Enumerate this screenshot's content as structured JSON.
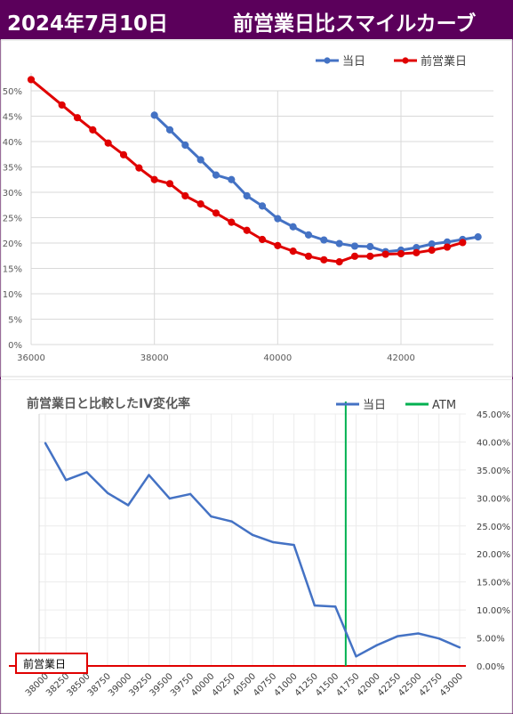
{
  "header": {
    "date": "2024年7月10日",
    "title": "前営業日比スマイルカーブ"
  },
  "colors": {
    "header_bg": "#5b005b",
    "today": "#4472c4",
    "prev": "#e00000",
    "atm": "#00b050",
    "grid": "#d9d9d9"
  },
  "chart_data": [
    {
      "type": "line",
      "title": "",
      "xlim": [
        36000,
        43500
      ],
      "ylim": [
        0,
        0.5
      ],
      "x_ticks": [
        "36000",
        "38000",
        "40000",
        "42000"
      ],
      "y_ticks": [
        "0%",
        "5%",
        "10%",
        "15%",
        "20%",
        "25%",
        "30%",
        "35%",
        "40%",
        "45%",
        "50%"
      ],
      "legend_position": "top-right",
      "series": [
        {
          "name": "当日",
          "x": [
            38000,
            38250,
            38500,
            38750,
            39000,
            39250,
            39500,
            39750,
            40000,
            40250,
            40500,
            40750,
            41000,
            41250,
            41500,
            41750,
            42000,
            42250,
            42500,
            42750,
            43000,
            43250
          ],
          "y": [
            0.452,
            0.423,
            0.393,
            0.364,
            0.334,
            0.325,
            0.293,
            0.273,
            0.248,
            0.232,
            0.216,
            0.206,
            0.199,
            0.194,
            0.193,
            0.183,
            0.186,
            0.191,
            0.198,
            0.202,
            0.207,
            0.212
          ]
        },
        {
          "name": "前営業日",
          "x": [
            36000,
            36500,
            36750,
            37000,
            37250,
            37500,
            37750,
            38000,
            38250,
            38500,
            38750,
            39000,
            39250,
            39500,
            39750,
            40000,
            40250,
            40500,
            40750,
            41000,
            41250,
            41500,
            41750,
            42000,
            42250,
            42500,
            42750,
            43000
          ],
          "y": [
            0.522,
            0.472,
            0.447,
            0.423,
            0.397,
            0.374,
            0.348,
            0.325,
            0.317,
            0.293,
            0.277,
            0.259,
            0.241,
            0.225,
            0.207,
            0.195,
            0.184,
            0.174,
            0.167,
            0.163,
            0.174,
            0.174,
            0.178,
            0.179,
            0.181,
            0.186,
            0.192,
            0.201
          ]
        }
      ]
    },
    {
      "type": "line",
      "title": "前営業日と比較したIV変化率",
      "ylim": [
        0,
        0.45
      ],
      "categories": [
        "38000",
        "38250",
        "38500",
        "38750",
        "39000",
        "39250",
        "39500",
        "39750",
        "40000",
        "40250",
        "40500",
        "40750",
        "41000",
        "41250",
        "41500",
        "41750",
        "42000",
        "42250",
        "42500",
        "42750",
        "43000"
      ],
      "y_ticks": [
        "0.00%",
        "5.00%",
        "10.00%",
        "15.00%",
        "20.00%",
        "25.00%",
        "30.00%",
        "35.00%",
        "40.00%",
        "45.00%"
      ],
      "legend_position": "top-right",
      "atm": {
        "name": "ATM",
        "position": 41625
      },
      "series": [
        {
          "name": "当日",
          "values": [
            0.398,
            0.332,
            0.346,
            0.309,
            0.287,
            0.341,
            0.299,
            0.307,
            0.267,
            0.258,
            0.234,
            0.221,
            0.216,
            0.108,
            0.106,
            0.017,
            0.037,
            0.053,
            0.058,
            0.049,
            0.033
          ]
        }
      ],
      "baseline_label": "前営業日"
    }
  ]
}
